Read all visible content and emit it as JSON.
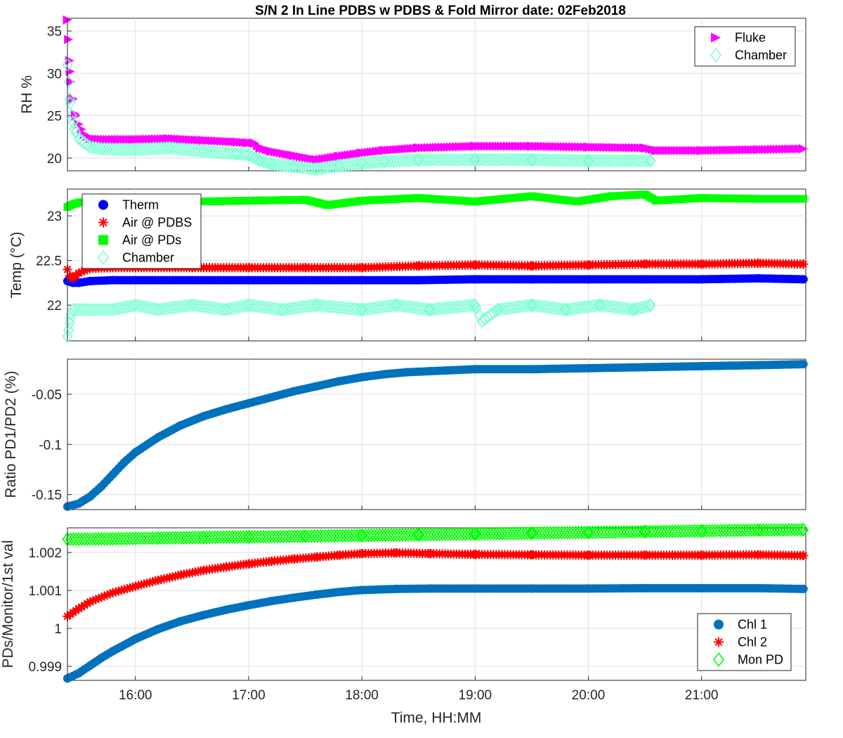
{
  "figure": {
    "title": "S/N 2 In Line PDBS w PDBS & Fold Mirror date: 02Feb2018",
    "xlabel": "Time, HH:MM"
  },
  "chart_data": [
    {
      "type": "scatter",
      "ylabel": "RH %",
      "xlim": [
        15.4,
        21.92
      ],
      "ylim": [
        18.5,
        36.5
      ],
      "yticks": [
        20,
        25,
        30,
        35
      ],
      "ytick_labels": [
        "20",
        "25",
        "30",
        "35"
      ],
      "grid": true,
      "legend": "top-right",
      "series": [
        {
          "name": "Fluke",
          "color": "#ff00ff",
          "marker": "triangle-right",
          "x": [
            15.4,
            15.41,
            15.42,
            15.43,
            15.45,
            15.47,
            15.5,
            15.55,
            15.6,
            15.7,
            15.85,
            16.0,
            16.3,
            16.6,
            16.9,
            17.0,
            17.05,
            17.1,
            17.2,
            17.4,
            17.6,
            17.8,
            18.0,
            18.2,
            18.5,
            19.0,
            19.5,
            20.0,
            20.5,
            20.6,
            21.0,
            21.5,
            21.9
          ],
          "y": [
            36.3,
            34.0,
            31.5,
            29.0,
            27.0,
            25.2,
            24.0,
            22.8,
            22.3,
            22.2,
            22.2,
            22.2,
            22.3,
            22.1,
            21.9,
            21.8,
            21.8,
            21.2,
            20.8,
            20.3,
            19.8,
            20.2,
            20.6,
            20.9,
            21.2,
            21.4,
            21.4,
            21.3,
            21.2,
            20.9,
            20.9,
            21.0,
            21.1
          ]
        },
        {
          "name": "Chamber",
          "color": "#7fffd4",
          "marker": "diamond",
          "x": [
            15.4,
            15.41,
            15.42,
            15.44,
            15.46,
            15.5,
            15.55,
            15.6,
            15.7,
            15.85,
            16.0,
            16.3,
            16.6,
            16.9,
            17.0,
            17.1,
            17.2,
            17.4,
            17.6,
            17.8,
            18.0,
            18.2,
            18.5,
            19.0,
            19.5,
            20.0,
            20.55
          ],
          "y": [
            31.0,
            29.0,
            27.0,
            25.0,
            23.5,
            22.3,
            21.8,
            21.3,
            21.1,
            21.0,
            21.0,
            21.2,
            20.8,
            20.5,
            20.4,
            19.7,
            19.3,
            19.0,
            18.7,
            19.1,
            19.4,
            19.6,
            19.8,
            19.8,
            19.8,
            19.7,
            19.7
          ]
        }
      ]
    },
    {
      "type": "scatter",
      "ylabel": "Temp (°C)",
      "xlim": [
        15.4,
        21.92
      ],
      "ylim": [
        21.6,
        23.3
      ],
      "yticks": [
        22,
        22.5,
        23
      ],
      "ytick_labels": [
        "22",
        "22.5",
        "23"
      ],
      "grid": true,
      "legend": "top-left",
      "series": [
        {
          "name": "Therm",
          "color": "#0000ff",
          "marker": "circle",
          "x": [
            15.4,
            15.45,
            15.5,
            15.6,
            15.8,
            16.0,
            16.5,
            17.0,
            17.5,
            18.0,
            18.5,
            19.0,
            19.5,
            20.0,
            20.5,
            21.0,
            21.5,
            21.9
          ],
          "y": [
            22.27,
            22.25,
            22.25,
            22.27,
            22.28,
            22.28,
            22.28,
            22.28,
            22.28,
            22.28,
            22.28,
            22.29,
            22.29,
            22.29,
            22.29,
            22.29,
            22.3,
            22.29
          ]
        },
        {
          "name": "Air @ PDBS",
          "color": "#ff0000",
          "marker": "asterisk",
          "x": [
            15.4,
            15.42,
            15.45,
            15.5,
            15.6,
            15.8,
            16.0,
            16.5,
            17.0,
            17.5,
            18.0,
            18.5,
            19.0,
            19.5,
            20.0,
            20.5,
            21.0,
            21.5,
            21.9
          ],
          "y": [
            22.4,
            22.33,
            22.3,
            22.36,
            22.41,
            22.42,
            22.42,
            22.42,
            22.42,
            22.42,
            22.42,
            22.44,
            22.45,
            22.44,
            22.45,
            22.46,
            22.46,
            22.47,
            22.46
          ]
        },
        {
          "name": "Air @ PDs",
          "color": "#00ff00",
          "marker": "square",
          "x": [
            15.4,
            15.45,
            15.5,
            15.6,
            15.8,
            16.0,
            16.5,
            17.0,
            17.5,
            17.7,
            18.0,
            18.5,
            19.0,
            19.5,
            19.9,
            20.2,
            20.5,
            20.6,
            21.0,
            21.5,
            21.9
          ],
          "y": [
            23.1,
            23.13,
            23.15,
            23.16,
            23.15,
            23.15,
            23.16,
            23.17,
            23.18,
            23.12,
            23.17,
            23.2,
            23.16,
            23.22,
            23.16,
            23.22,
            23.24,
            23.17,
            23.2,
            23.19,
            23.19
          ]
        },
        {
          "name": "Chamber",
          "color": "#7fffd4",
          "marker": "diamond",
          "x": [
            15.4,
            15.41,
            15.42,
            15.43,
            15.45,
            15.5,
            15.6,
            15.8,
            16.0,
            16.2,
            16.5,
            16.8,
            17.0,
            17.3,
            17.6,
            18.0,
            18.3,
            18.6,
            19.0,
            19.06,
            19.2,
            19.5,
            19.8,
            20.1,
            20.4,
            20.55
          ],
          "y": [
            21.65,
            21.72,
            21.8,
            21.9,
            21.95,
            21.95,
            21.95,
            21.95,
            22.0,
            21.95,
            22.0,
            21.95,
            22.0,
            21.95,
            22.0,
            21.95,
            22.0,
            21.95,
            22.0,
            21.82,
            21.95,
            22.0,
            21.95,
            22.0,
            21.95,
            22.0
          ]
        }
      ]
    },
    {
      "type": "scatter",
      "ylabel": "Ratio PD1/PD2 (%)",
      "xlim": [
        15.4,
        21.92
      ],
      "ylim": [
        -0.165,
        -0.015
      ],
      "yticks": [
        -0.15,
        -0.1,
        -0.05
      ],
      "ytick_labels": [
        "-0.15",
        "-0.1",
        "-0.05"
      ],
      "grid": true,
      "series": [
        {
          "name": "",
          "color": "#0072bd",
          "marker": "circle",
          "x": [
            15.4,
            15.5,
            15.6,
            15.7,
            15.8,
            15.9,
            16.0,
            16.2,
            16.4,
            16.6,
            16.8,
            17.0,
            17.2,
            17.4,
            17.6,
            17.8,
            18.0,
            18.2,
            18.4,
            18.6,
            18.8,
            19.0,
            19.5,
            20.0,
            20.5,
            21.0,
            21.5,
            21.9
          ],
          "y": [
            -0.162,
            -0.159,
            -0.152,
            -0.142,
            -0.13,
            -0.118,
            -0.108,
            -0.093,
            -0.081,
            -0.072,
            -0.065,
            -0.059,
            -0.053,
            -0.047,
            -0.042,
            -0.037,
            -0.033,
            -0.03,
            -0.028,
            -0.027,
            -0.026,
            -0.025,
            -0.025,
            -0.024,
            -0.023,
            -0.022,
            -0.021,
            -0.02
          ]
        }
      ]
    },
    {
      "type": "scatter",
      "ylabel": "PDs/Monitor/1st val",
      "xlim": [
        15.4,
        21.92
      ],
      "ylim": [
        0.99863,
        1.00265
      ],
      "yticks": [
        0.999,
        1,
        1.001,
        1.002
      ],
      "ytick_labels": [
        "0.999",
        "1",
        "1.001",
        "1.002"
      ],
      "xticks": [
        16,
        17,
        18,
        19,
        20,
        21
      ],
      "xtick_labels": [
        "16:00",
        "17:00",
        "18:00",
        "19:00",
        "20:00",
        "21:00"
      ],
      "grid": true,
      "legend": "bottom-right",
      "series": [
        {
          "name": "Chl 1",
          "color": "#0072bd",
          "marker": "circle",
          "x": [
            15.4,
            15.5,
            15.6,
            15.7,
            15.8,
            16.0,
            16.2,
            16.4,
            16.6,
            16.8,
            17.0,
            17.2,
            17.4,
            17.6,
            17.8,
            18.0,
            18.3,
            18.6,
            19.0,
            19.5,
            20.0,
            20.5,
            21.0,
            21.5,
            21.9
          ],
          "y": [
            0.99868,
            0.99882,
            0.99902,
            0.99922,
            0.9994,
            0.99972,
            0.99998,
            1.00019,
            1.00035,
            1.00049,
            1.00061,
            1.00072,
            1.00081,
            1.00089,
            1.00096,
            1.00101,
            1.00104,
            1.00105,
            1.00105,
            1.00105,
            1.00105,
            1.00106,
            1.00106,
            1.00106,
            1.00104
          ]
        },
        {
          "name": "Chl 2",
          "color": "#ff0000",
          "marker": "asterisk",
          "x": [
            15.4,
            15.5,
            15.6,
            15.8,
            16.0,
            16.2,
            16.4,
            16.6,
            16.8,
            17.0,
            17.2,
            17.4,
            17.6,
            17.8,
            18.0,
            18.3,
            18.6,
            19.0,
            19.5,
            20.0,
            20.5,
            21.0,
            21.5,
            21.9
          ],
          "y": [
            1.00032,
            1.00052,
            1.0007,
            1.00094,
            1.00111,
            1.00127,
            1.00141,
            1.00153,
            1.00162,
            1.0017,
            1.00177,
            1.00183,
            1.00188,
            1.00193,
            1.00197,
            1.00199,
            1.00197,
            1.00195,
            1.00194,
            1.00193,
            1.00193,
            1.00193,
            1.00194,
            1.00192
          ]
        },
        {
          "name": "Mon PD",
          "color": "#00ff00",
          "marker": "diamond",
          "x": [
            15.4,
            15.8,
            16.2,
            16.6,
            17.0,
            17.5,
            18.0,
            18.5,
            19.0,
            19.5,
            20.0,
            20.5,
            21.0,
            21.5,
            21.9
          ],
          "y": [
            1.00235,
            1.00236,
            1.00238,
            1.0024,
            1.00241,
            1.00243,
            1.00245,
            1.00247,
            1.00249,
            1.00251,
            1.00253,
            1.00255,
            1.00257,
            1.00259,
            1.0026
          ]
        }
      ]
    }
  ]
}
